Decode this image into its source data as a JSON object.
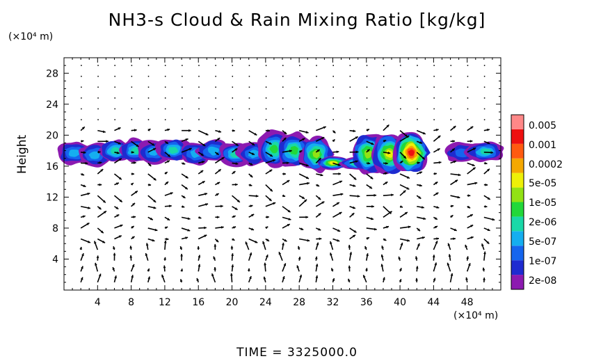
{
  "chart_data": {
    "type": "heatmap",
    "title": "NH3-s Cloud & Rain Mixing Ratio [kg/kg]",
    "ylabel": "Height",
    "y_unit": "(×10⁴ m)",
    "x_unit": "(×10⁴ m)",
    "xlim": [
      0,
      52
    ],
    "ylim": [
      0,
      30
    ],
    "x_ticks": [
      4,
      8,
      12,
      16,
      20,
      24,
      28,
      32,
      36,
      40,
      44,
      48
    ],
    "y_ticks": [
      4,
      8,
      12,
      16,
      20,
      24,
      28
    ],
    "footer": "TIME = 3325000.0",
    "colorbar": {
      "levels": [
        "2e-08",
        "1e-07",
        "5e-07",
        "2e-06",
        "1e-05",
        "5e-05",
        "0.0002",
        "0.001",
        "0.005"
      ],
      "colors": [
        "#8c1ab0",
        "#1e2bd0",
        "#1565ee",
        "#15aef0",
        "#19d8a8",
        "#22d83a",
        "#92e214",
        "#eef008",
        "#f5a800",
        "#ff5a10",
        "#ee1010",
        "#ff8888"
      ]
    },
    "cloud_regions": [
      {
        "x": [
          0,
          24
        ],
        "y": [
          16.5,
          19.0
        ],
        "max": "5e-05"
      },
      {
        "x": [
          24,
          31
        ],
        "y": [
          16.0,
          19.8
        ],
        "max": "0.0002"
      },
      {
        "x": [
          31,
          36
        ],
        "y": [
          15.8,
          17.0
        ],
        "max": "0.0002"
      },
      {
        "x": [
          35,
          42.5
        ],
        "y": [
          15.5,
          20.2
        ],
        "max": "0.005"
      },
      {
        "x": [
          46,
          51.5
        ],
        "y": [
          16.8,
          18.8
        ],
        "max": "1e-05"
      }
    ]
  }
}
